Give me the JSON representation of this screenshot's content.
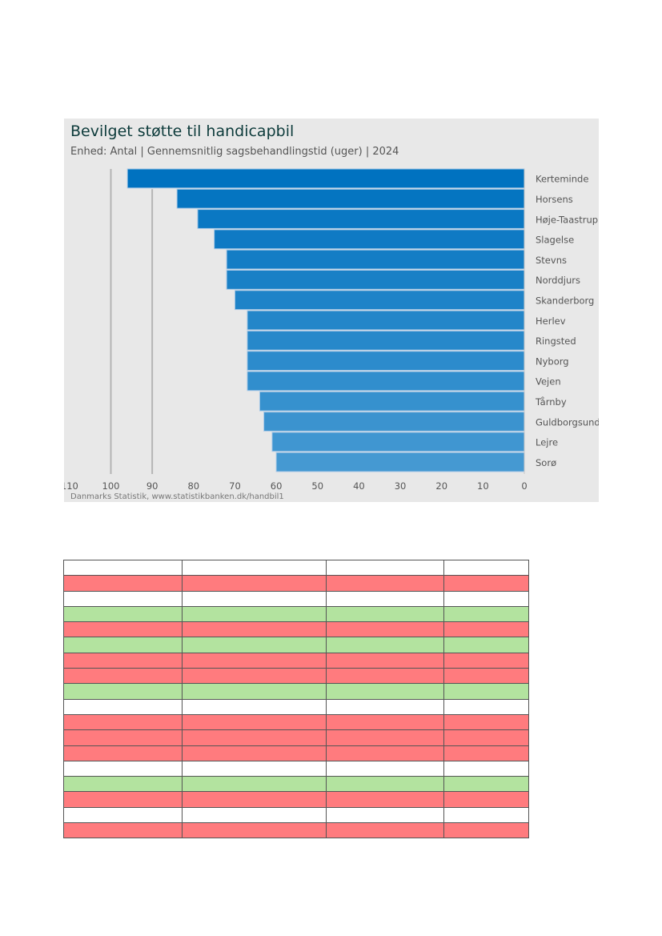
{
  "chart_data": {
    "type": "bar",
    "orientation": "horizontal",
    "title": "Bevilget støtte til handicapbil",
    "subtitle": "Enhed: Antal | Gennemsnitlig sagsbehandlingstid (uger) | 2024",
    "source": "Danmarks Statistik, www.statistikbanken.dk/handbil1",
    "xlabel": "",
    "ylabel": "",
    "x_axis_reversed": true,
    "xlim": [
      0,
      110
    ],
    "x_ticks": [
      110,
      100,
      90,
      80,
      70,
      60,
      50,
      40,
      30,
      20,
      10,
      0
    ],
    "reference_lines": [
      100,
      90
    ],
    "categories": [
      "Kerteminde",
      "Horsens",
      "Høje-Taastrup",
      "Slagelse",
      "Stevns",
      "Norddjurs",
      "Skanderborg",
      "Herlev",
      "Ringsted",
      "Nyborg",
      "Vejen",
      "Tårnby",
      "Guldborgsund",
      "Lejre",
      "Sorø"
    ],
    "values": [
      96,
      84,
      79,
      75,
      72,
      72,
      70,
      67,
      67,
      67,
      67,
      64,
      63,
      61,
      60
    ],
    "bar_color_start": "#0072c0",
    "bar_color_end": "#4599d2",
    "legend": "none"
  },
  "table": {
    "row_colors": [
      "white",
      "red",
      "white",
      "green",
      "red",
      "green",
      "red",
      "red",
      "green",
      "white",
      "red",
      "red",
      "red",
      "white",
      "green",
      "red",
      "white",
      "red"
    ],
    "palette": {
      "white": "#ffffff",
      "red": "#ff7b7e",
      "green": "#b3e39f"
    },
    "column_count": 4
  }
}
